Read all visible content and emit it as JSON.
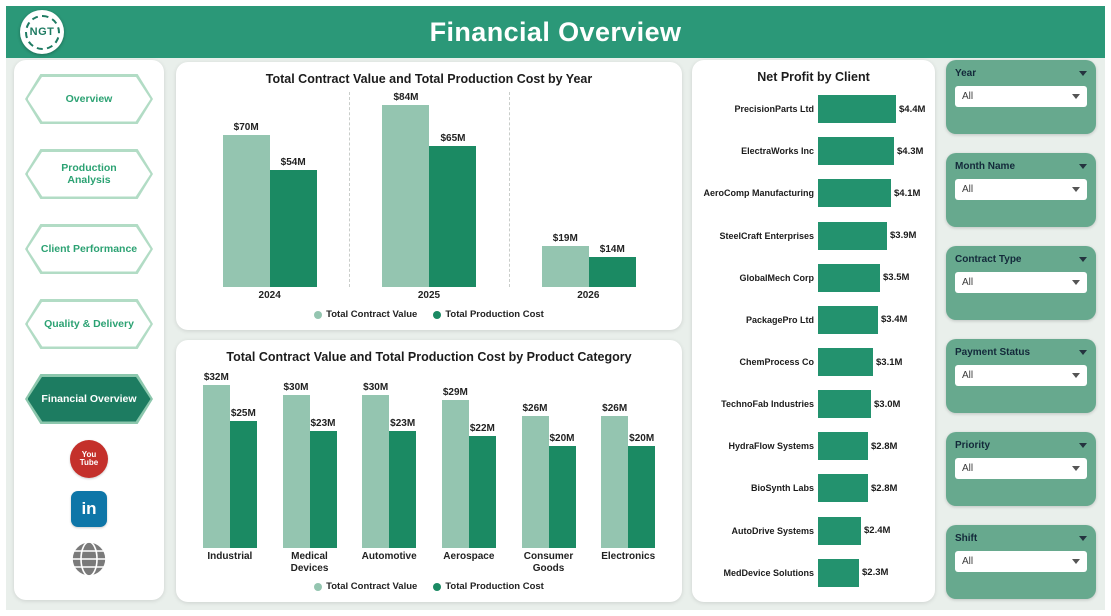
{
  "header": {
    "title": "Financial Overview",
    "logo_text": "NGT"
  },
  "sidebar": {
    "items": [
      {
        "label": "Overview",
        "active": false
      },
      {
        "label": "Production Analysis",
        "active": false
      },
      {
        "label": "Client Performance",
        "active": false
      },
      {
        "label": "Quality & Delivery",
        "active": false
      },
      {
        "label": "Financial Overview",
        "active": true
      }
    ],
    "social": [
      {
        "name": "youtube",
        "label": "You Tube",
        "color": "#c4302b"
      },
      {
        "name": "linkedin",
        "label": "in",
        "color": "#0e76a8"
      },
      {
        "name": "website",
        "label": "",
        "color": "#7a7a7a"
      }
    ]
  },
  "colors": {
    "header_green": "#2b9878",
    "contract_value": "#94c5b0",
    "production_cost": "#1b8a63",
    "net_profit_bar": "#23926e",
    "slicer_bg": "#67a98e"
  },
  "chart_data": [
    {
      "type": "bar",
      "title": "Total Contract Value and Total Production Cost by Year",
      "categories": [
        "2024",
        "2025",
        "2026"
      ],
      "series": [
        {
          "name": "Total Contract Value",
          "values": [
            70,
            84,
            19
          ],
          "labels": [
            "$70M",
            "$84M",
            "$19M"
          ],
          "color": "#94c5b0"
        },
        {
          "name": "Total Production Cost",
          "values": [
            54,
            65,
            14
          ],
          "labels": [
            "$54M",
            "$65M",
            "$14M"
          ],
          "color": "#1b8a63"
        }
      ],
      "xlabel": "",
      "ylabel": "",
      "ylim": [
        0,
        90
      ],
      "grid": false,
      "legend_position": "bottom"
    },
    {
      "type": "bar",
      "title": "Total Contract Value and Total Production Cost by Product Category",
      "categories": [
        "Industrial",
        "Medical Devices",
        "Automotive",
        "Aerospace",
        "Consumer Goods",
        "Electronics"
      ],
      "series": [
        {
          "name": "Total Contract Value",
          "values": [
            32,
            30,
            30,
            29,
            26,
            26
          ],
          "labels": [
            "$32M",
            "$30M",
            "$30M",
            "$29M",
            "$26M",
            "$26M"
          ],
          "color": "#94c5b0"
        },
        {
          "name": "Total Production Cost",
          "values": [
            25,
            23,
            23,
            22,
            20,
            20
          ],
          "labels": [
            "$25M",
            "$23M",
            "$23M",
            "$22M",
            "$20M",
            "$20M"
          ],
          "color": "#1b8a63"
        }
      ],
      "xlabel": "",
      "ylabel": "",
      "ylim": [
        0,
        35
      ],
      "grid": false,
      "legend_position": "bottom"
    },
    {
      "type": "bar",
      "orientation": "horizontal",
      "title": "Net Profit by Client",
      "categories": [
        "PrecisionParts Ltd",
        "ElectraWorks Inc",
        "AeroComp Manufacturing",
        "SteelCraft Enterprises",
        "GlobalMech Corp",
        "PackagePro Ltd",
        "ChemProcess Co",
        "TechnoFab Industries",
        "HydraFlow Systems",
        "BioSynth Labs",
        "AutoDrive Systems",
        "MedDevice Solutions"
      ],
      "values": [
        4.4,
        4.3,
        4.1,
        3.9,
        3.5,
        3.4,
        3.1,
        3.0,
        2.8,
        2.8,
        2.4,
        2.3
      ],
      "labels": [
        "$4.4M",
        "$4.3M",
        "$4.1M",
        "$3.9M",
        "$3.5M",
        "$3.4M",
        "$3.1M",
        "$3.0M",
        "$2.8M",
        "$2.8M",
        "$2.4M",
        "$2.3M"
      ],
      "xlim": [
        0,
        4.4
      ],
      "color": "#23926e",
      "grid": false,
      "legend_position": "none"
    }
  ],
  "filters": [
    {
      "label": "Year",
      "value": "All"
    },
    {
      "label": "Month Name",
      "value": "All"
    },
    {
      "label": "Contract Type",
      "value": "All"
    },
    {
      "label": "Payment Status",
      "value": "All"
    },
    {
      "label": "Priority",
      "value": "All"
    },
    {
      "label": "Shift",
      "value": "All"
    }
  ]
}
